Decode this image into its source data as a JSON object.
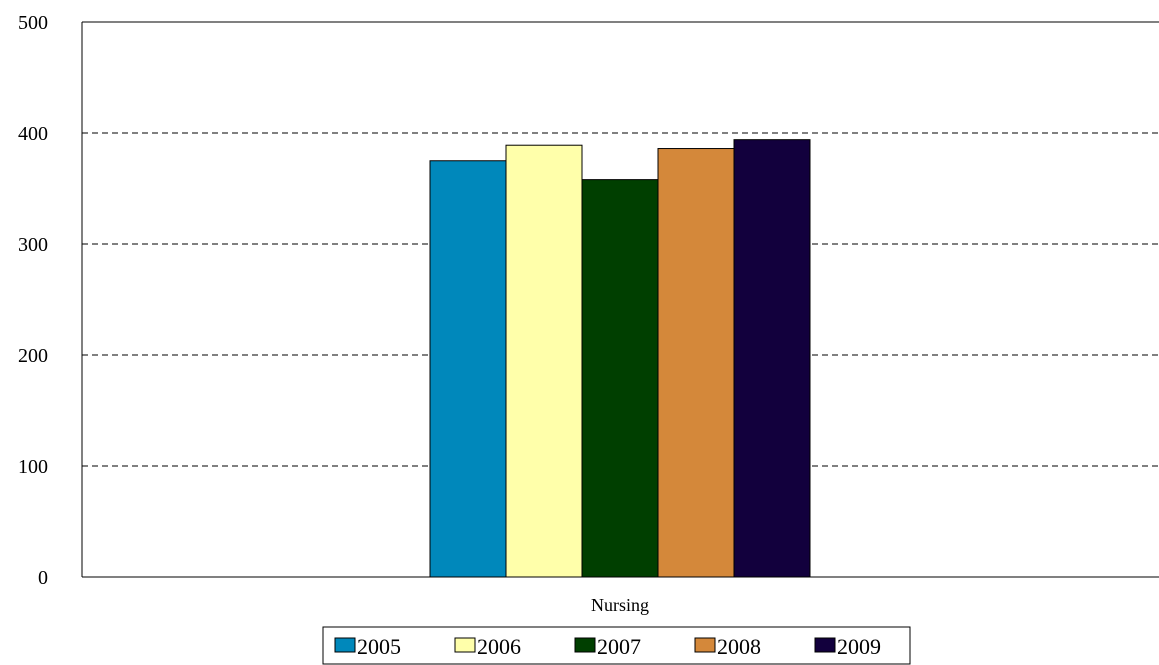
{
  "chart_data": {
    "type": "bar",
    "categories": [
      "Nursing"
    ],
    "series": [
      {
        "name": "2005",
        "values": [
          375
        ],
        "color": "#0088BB"
      },
      {
        "name": "2006",
        "values": [
          389
        ],
        "color": "#FFFFAA"
      },
      {
        "name": "2007",
        "values": [
          358
        ],
        "color": "#003F00"
      },
      {
        "name": "2008",
        "values": [
          386
        ],
        "color": "#D4883A"
      },
      {
        "name": "2009",
        "values": [
          394
        ],
        "color": "#12003D"
      }
    ],
    "title": "",
    "xlabel": "",
    "ylabel": "",
    "ylim": [
      0,
      500
    ],
    "yticks": [
      0,
      100,
      200,
      300,
      400,
      500
    ],
    "grid": "horizontal-dashed",
    "legend": "bottom"
  }
}
